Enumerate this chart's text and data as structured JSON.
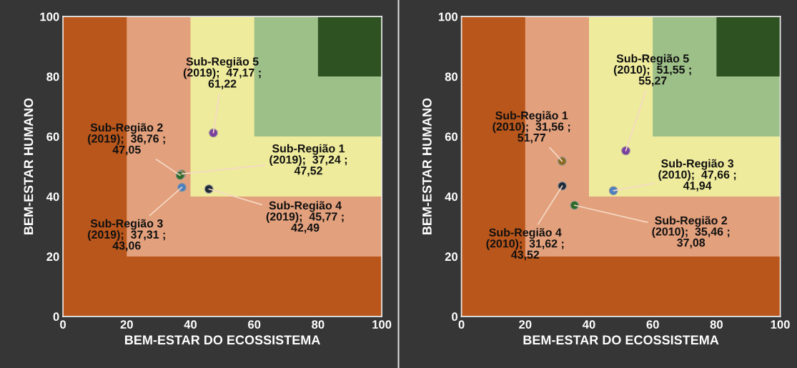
{
  "chart_data": [
    {
      "type": "scatter",
      "xlabel": "BEM-ESTAR DO ECOSSISTEMA",
      "ylabel": "BEM-ESTAR HUMANO",
      "xlim": [
        0,
        100
      ],
      "ylim": [
        0,
        100
      ],
      "xticks": [
        0,
        20,
        40,
        60,
        80,
        100
      ],
      "yticks": [
        0,
        20,
        40,
        60,
        80,
        100
      ],
      "grid": false,
      "legend": false,
      "marker": "circle",
      "bands": [
        {
          "axis": "x",
          "from": 0,
          "to": 100,
          "color": "#b9561b"
        },
        {
          "axis": "x",
          "from": 20,
          "to": 100,
          "color": "#e3a07c"
        },
        {
          "axis": "x",
          "from": 40,
          "to": 100,
          "color": "#efeb9c"
        },
        {
          "axis": "x",
          "from": 60,
          "to": 100,
          "color": "#9dbf88"
        },
        {
          "axis": "x",
          "from": 80,
          "to": 100,
          "color": "#2f5222"
        }
      ],
      "series": [
        {
          "x": [
            37.24
          ],
          "values": [
            47.52
          ],
          "color": "#8a6a20"
        },
        {
          "x": [
            36.76
          ],
          "values": [
            47.05
          ],
          "color": "#2e6b2a"
        },
        {
          "x": [
            37.31
          ],
          "values": [
            43.06
          ],
          "color": "#4a7fc0"
        },
        {
          "x": [
            45.77
          ],
          "values": [
            42.49
          ],
          "color": "#1f2a3a"
        },
        {
          "x": [
            47.17
          ],
          "values": [
            61.22
          ],
          "color": "#7b3fa0"
        }
      ],
      "annotations": [
        {
          "text": "Sub-Região 1\n(2019);  37,24 ;\n47,52",
          "x": 37.24,
          "y": 47.52
        },
        {
          "text": "Sub-Região 2\n(2019);  36,76 ;\n47,05",
          "x": 36.76,
          "y": 47.05
        },
        {
          "text": "Sub-Região 3\n(2019);  37,31 ;\n43,06",
          "x": 37.31,
          "y": 43.06
        },
        {
          "text": "Sub-Região 4\n(2019);  45,77 ;\n42,49",
          "x": 45.77,
          "y": 42.49
        },
        {
          "text": "Sub-Região 5\n(2019);  47,17 ;\n61,22",
          "x": 47.17,
          "y": 61.22
        }
      ]
    },
    {
      "type": "scatter",
      "xlabel": "BEM-ESTAR DO ECOSSISTEMA",
      "ylabel": "BEM-ESTAR HUMANO",
      "xlim": [
        0,
        100
      ],
      "ylim": [
        0,
        100
      ],
      "xticks": [
        0,
        20,
        40,
        60,
        80,
        100
      ],
      "yticks": [
        0,
        20,
        40,
        60,
        80,
        100
      ],
      "grid": false,
      "legend": false,
      "marker": "circle",
      "bands": [
        {
          "axis": "x",
          "from": 0,
          "to": 100,
          "color": "#b9561b"
        },
        {
          "axis": "x",
          "from": 20,
          "to": 100,
          "color": "#e3a07c"
        },
        {
          "axis": "x",
          "from": 40,
          "to": 100,
          "color": "#efeb9c"
        },
        {
          "axis": "x",
          "from": 60,
          "to": 100,
          "color": "#9dbf88"
        },
        {
          "axis": "x",
          "from": 80,
          "to": 100,
          "color": "#2f5222"
        }
      ],
      "series": [
        {
          "x": [
            31.56
          ],
          "values": [
            51.77
          ],
          "color": "#8a6a20"
        },
        {
          "x": [
            35.46
          ],
          "values": [
            37.08
          ],
          "color": "#2e6b2a"
        },
        {
          "x": [
            47.66
          ],
          "values": [
            41.94
          ],
          "color": "#4a7fc0"
        },
        {
          "x": [
            31.62
          ],
          "values": [
            43.52
          ],
          "color": "#1f2a3a"
        },
        {
          "x": [
            51.55
          ],
          "values": [
            55.27
          ],
          "color": "#7b3fa0"
        }
      ],
      "annotations": [
        {
          "text": "Sub-Região 1\n(2010);  31,56 ;\n51,77",
          "x": 31.56,
          "y": 51.77
        },
        {
          "text": "Sub-Região 2\n(2010);  35,46 ;\n37,08",
          "x": 35.46,
          "y": 37.08
        },
        {
          "text": "Sub-Região 3\n(2010);  47,66 ;\n41,94",
          "x": 47.66,
          "y": 41.94
        },
        {
          "text": "Sub-Região 4\n(2010);  31,62 ;\n43,52",
          "x": 31.62,
          "y": 43.52
        },
        {
          "text": "Sub-Região 5\n(2010);  51,55 ;\n55,27",
          "x": 51.55,
          "y": 55.27
        }
      ]
    }
  ]
}
